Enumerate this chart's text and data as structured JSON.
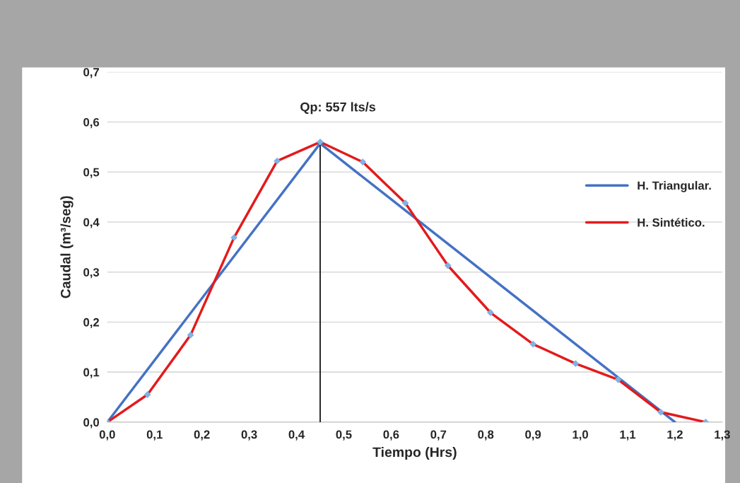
{
  "chart_data": {
    "type": "line",
    "xlabel": "Tiempo (Hrs)",
    "ylabel": "Caudal (m³/seg)",
    "series": [
      {
        "name": "H. Triangular.",
        "color": "#4472c4",
        "x": [
          0.0,
          0.45,
          1.2
        ],
        "values": [
          0.0,
          0.557,
          0.0
        ],
        "marker": "none"
      },
      {
        "name": "H. Sintético.",
        "color": "#e31a1c",
        "x": [
          0.0,
          0.085,
          0.176,
          0.268,
          0.359,
          0.45,
          0.54,
          0.63,
          0.72,
          0.81,
          0.9,
          0.99,
          1.08,
          1.17,
          1.265
        ],
        "values": [
          0.0,
          0.055,
          0.174,
          0.369,
          0.522,
          0.56,
          0.52,
          0.438,
          0.313,
          0.219,
          0.156,
          0.117,
          0.085,
          0.02,
          0.0
        ],
        "marker": "diamond"
      },
      {
        "color": "#000000",
        "x": [
          0.45,
          0.45
        ],
        "values": [
          0.0,
          0.557
        ],
        "marker": "none"
      }
    ],
    "annotations": [
      "Qp: 557 lts/s"
    ],
    "xlim": [
      0.0,
      1.3
    ],
    "ylim": [
      0.0,
      0.7
    ],
    "xticks": [
      {
        "value": 0.0,
        "label": "0,0"
      },
      {
        "value": 0.1,
        "label": "0,1"
      },
      {
        "value": 0.2,
        "label": "0,2"
      },
      {
        "value": 0.3,
        "label": "0,3"
      },
      {
        "value": 0.4,
        "label": "0,4"
      },
      {
        "value": 0.5,
        "label": "0,5"
      },
      {
        "value": 0.6,
        "label": "0,6"
      },
      {
        "value": 0.7,
        "label": "0,7"
      },
      {
        "value": 0.8,
        "label": "0,8"
      },
      {
        "value": 0.9,
        "label": "0,9"
      },
      {
        "value": 1.0,
        "label": "1,0"
      },
      {
        "value": 1.1,
        "label": "1,1"
      },
      {
        "value": 1.2,
        "label": "1,2"
      },
      {
        "value": 1.3,
        "label": "1,3"
      }
    ],
    "yticks": [
      {
        "value": 0.0,
        "label": "0,0"
      },
      {
        "value": 0.1,
        "label": "0,1"
      },
      {
        "value": 0.2,
        "label": "0,2"
      },
      {
        "value": 0.3,
        "label": "0,3"
      },
      {
        "value": 0.4,
        "label": "0,4"
      },
      {
        "value": 0.5,
        "label": "0,5"
      },
      {
        "value": 0.6,
        "label": "0,6"
      },
      {
        "value": 0.7,
        "label": "0,7"
      }
    ],
    "grid": "y",
    "legend": "right",
    "line_style": "solid"
  }
}
